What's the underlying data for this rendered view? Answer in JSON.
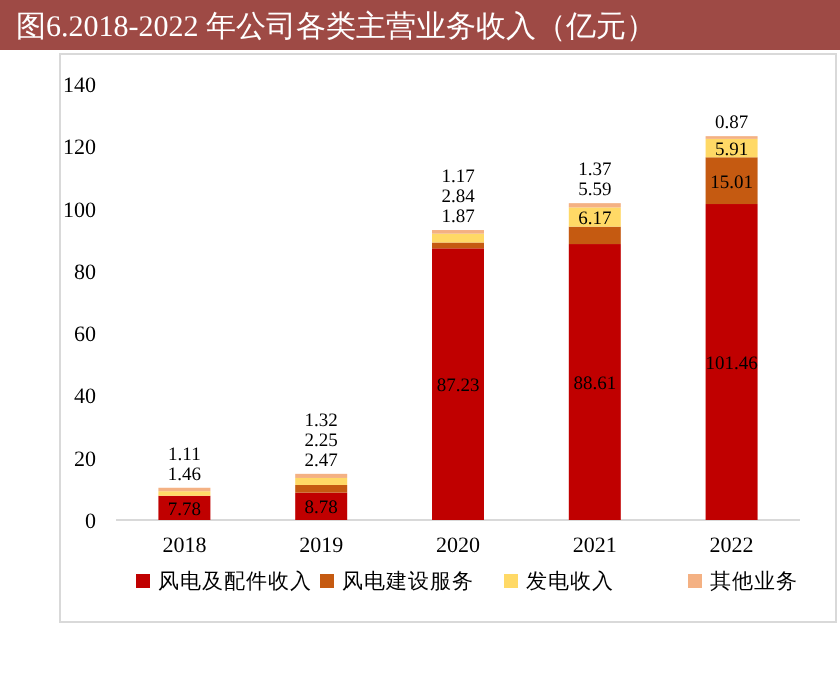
{
  "chart_data": {
    "type": "bar",
    "title": "图6.2018-2022 年公司各类主营业务收入（亿元）",
    "stacked": true,
    "categories": [
      "2018",
      "2019",
      "2020",
      "2021",
      "2022"
    ],
    "series": [
      {
        "name": "风电及配件收入",
        "color": "#c00000",
        "values": [
          7.78,
          8.78,
          87.23,
          88.61,
          101.46
        ]
      },
      {
        "name": "风电建设服务",
        "color": "#c55a11",
        "values": [
          null,
          2.47,
          1.87,
          5.59,
          15.01
        ]
      },
      {
        "name": "发电收入",
        "color": "#ffd966",
        "values": [
          1.46,
          2.25,
          2.84,
          6.17,
          5.91
        ]
      },
      {
        "name": "其他业务",
        "color": "#f4b183",
        "values": [
          1.11,
          1.32,
          1.17,
          1.37,
          0.87
        ]
      }
    ],
    "ylim": [
      0,
      140
    ],
    "yticks": [
      0,
      20,
      40,
      60,
      80,
      100,
      120,
      140
    ],
    "data_labels": true,
    "legend": "bottom",
    "grid": false
  }
}
